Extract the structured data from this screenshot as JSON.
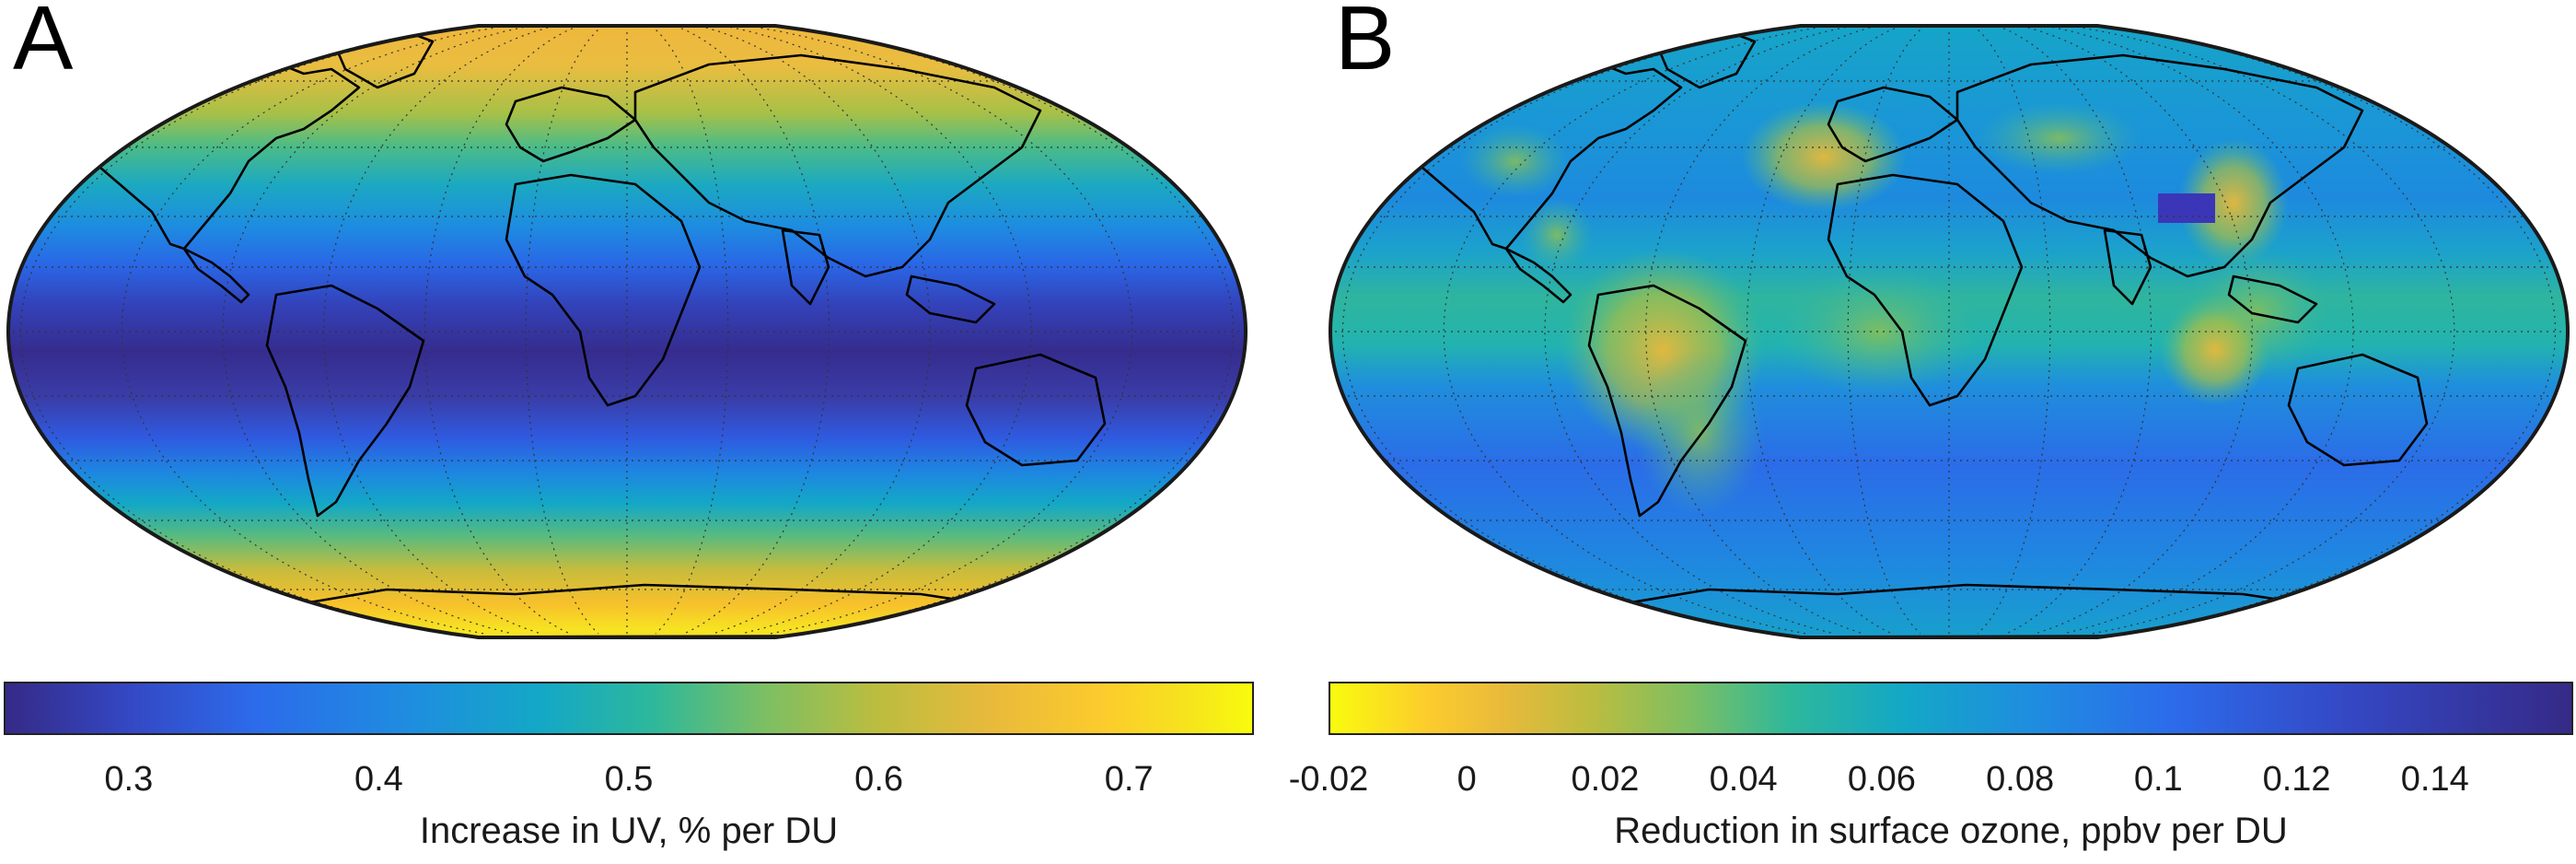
{
  "panels": [
    {
      "letter": "A",
      "colorbar": {
        "label": "Increase in UV, % per DU",
        "ticks": [
          "0.3",
          "0.4",
          "0.5",
          "0.6",
          "0.7"
        ],
        "range": [
          0.25,
          0.75
        ],
        "colormap": "parula"
      }
    },
    {
      "letter": "B",
      "colorbar": {
        "label": "Reduction in surface ozone, ppbv per DU",
        "ticks": [
          "-0.02",
          "0",
          "0.02",
          "0.04",
          "0.06",
          "0.08",
          "0.1",
          "0.12",
          "0.14"
        ],
        "range": [
          -0.02,
          0.16
        ],
        "colormap": "parula reversed"
      }
    }
  ],
  "map": {
    "projection": "Robinson",
    "graticule": "dotted"
  }
}
